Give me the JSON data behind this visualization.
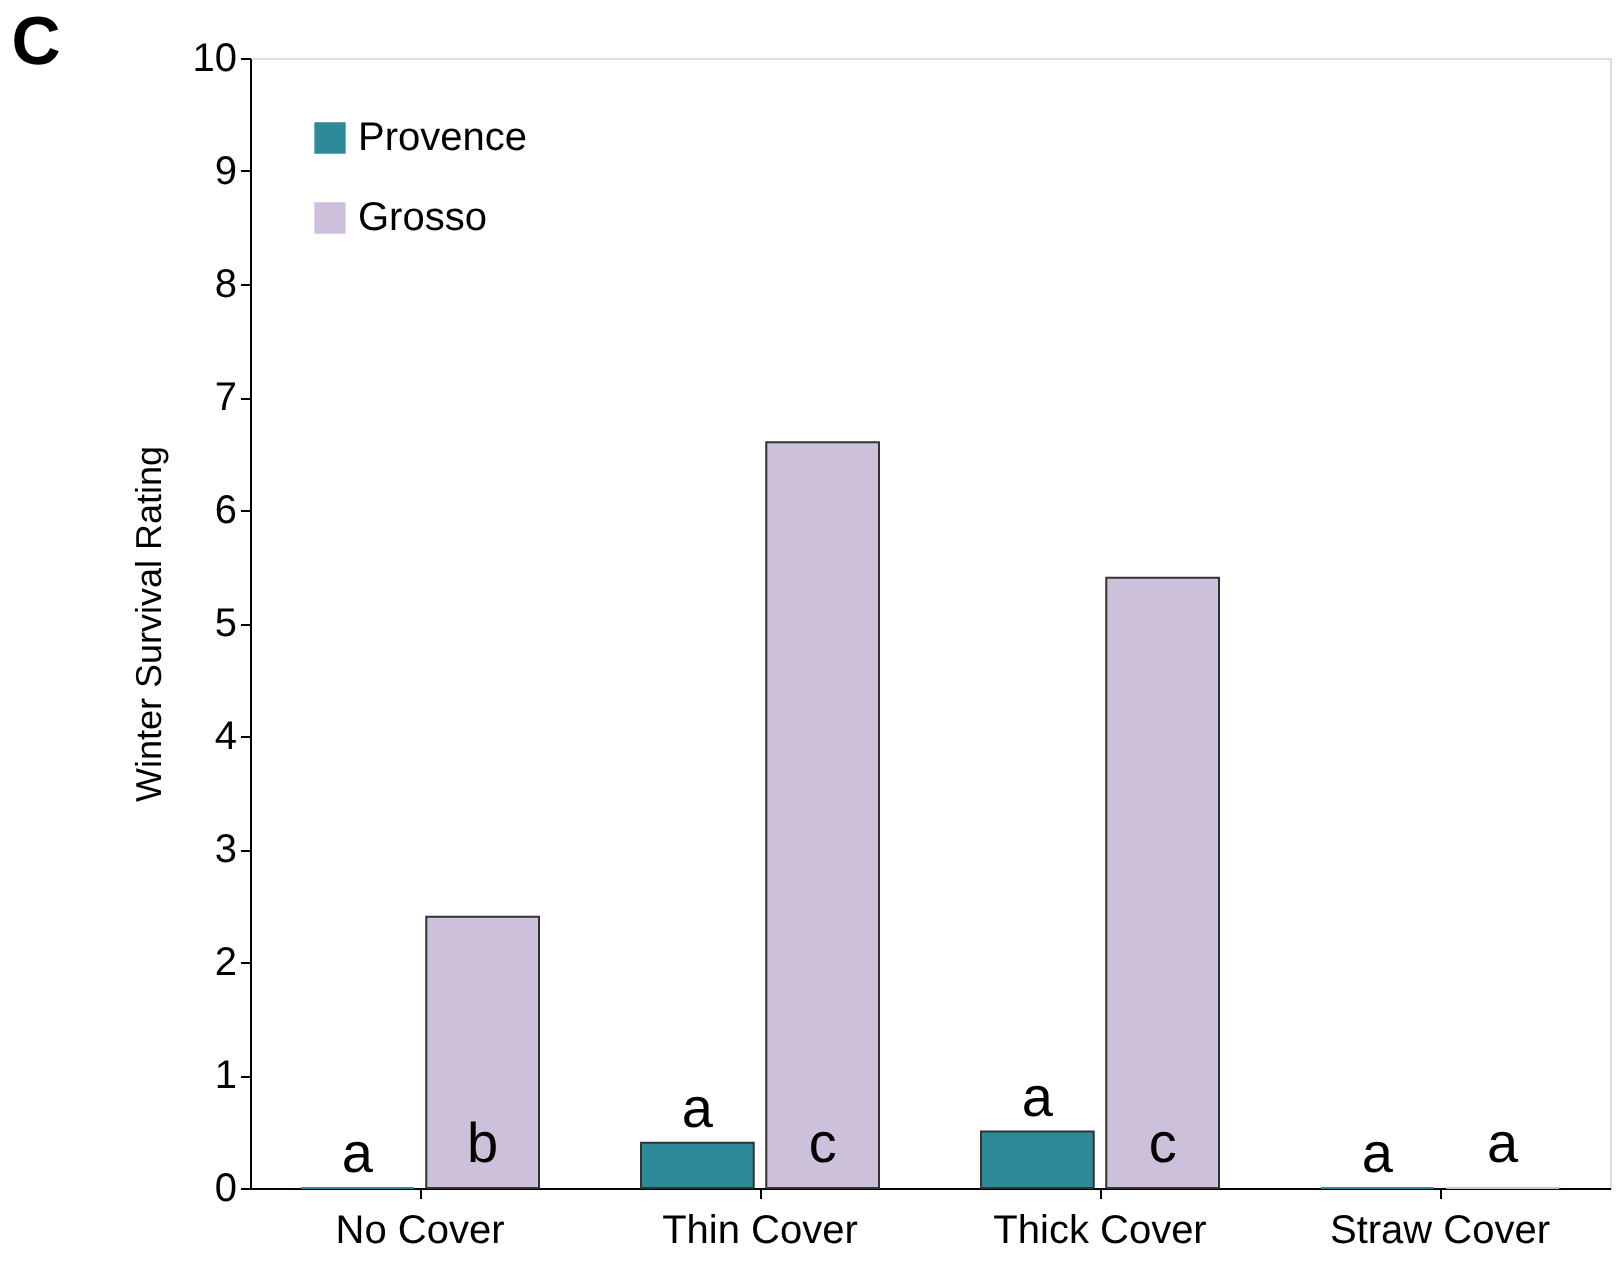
{
  "chart_data": {
    "type": "bar",
    "title": "C",
    "ylabel": "Winter Survival Rating",
    "categories": [
      "No Cover",
      "Thin Cover",
      "Thick Cover",
      "Straw Cover"
    ],
    "series": [
      {
        "name": "Provence",
        "color": "#2e8a99",
        "values": [
          0,
          0.4,
          0.5,
          0
        ],
        "value_labels": [
          "a",
          "a",
          "a",
          "a"
        ]
      },
      {
        "name": "Grosso",
        "color": "#ccc0da",
        "values": [
          2.4,
          6.6,
          5.4,
          0
        ],
        "value_labels": [
          "b",
          "c",
          "c",
          "a"
        ]
      }
    ],
    "ylim": [
      0,
      10
    ],
    "yticks": [
      0,
      1,
      2,
      3,
      4,
      5,
      6,
      7,
      8,
      9,
      10
    ],
    "grid": false,
    "legend": "top left"
  }
}
